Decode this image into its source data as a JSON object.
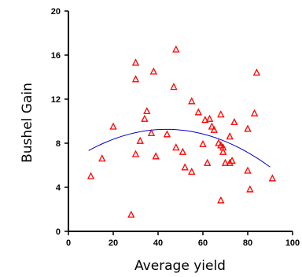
{
  "chart_data": {
    "type": "scatter",
    "xlabel": "Average yield",
    "ylabel": "Bushel Gain",
    "xlim": [
      0,
      100
    ],
    "ylim": [
      0,
      20
    ],
    "x_ticks": [
      0,
      20,
      40,
      60,
      80,
      100
    ],
    "y_ticks": [
      0,
      4,
      8,
      12,
      16,
      20
    ],
    "grid": false,
    "colors": {
      "marker": "#ff0000",
      "fit": "#0000cc",
      "axes": "#000000"
    },
    "marker_shape": "triangle",
    "points": [
      [
        10,
        5.0
      ],
      [
        15,
        6.6
      ],
      [
        20,
        9.5
      ],
      [
        28,
        1.5
      ],
      [
        30,
        15.3
      ],
      [
        30,
        13.8
      ],
      [
        30,
        7.0
      ],
      [
        32,
        8.2
      ],
      [
        34,
        10.2
      ],
      [
        35,
        10.9
      ],
      [
        37,
        8.9
      ],
      [
        38,
        14.5
      ],
      [
        39,
        6.8
      ],
      [
        44,
        8.8
      ],
      [
        47,
        13.1
      ],
      [
        48,
        16.5
      ],
      [
        48,
        7.6
      ],
      [
        51,
        7.2
      ],
      [
        52,
        5.8
      ],
      [
        55,
        11.8
      ],
      [
        55,
        5.4
      ],
      [
        58,
        10.8
      ],
      [
        60,
        7.9
      ],
      [
        61,
        10.1
      ],
      [
        62,
        6.2
      ],
      [
        63,
        10.2
      ],
      [
        64,
        9.5
      ],
      [
        65,
        9.2
      ],
      [
        67,
        8.0
      ],
      [
        68,
        10.6
      ],
      [
        68,
        7.8
      ],
      [
        69,
        7.6
      ],
      [
        69,
        7.2
      ],
      [
        70,
        6.2
      ],
      [
        72,
        6.2
      ],
      [
        72,
        8.6
      ],
      [
        73,
        6.4
      ],
      [
        74,
        9.9
      ],
      [
        68,
        2.8
      ],
      [
        80,
        9.3
      ],
      [
        80,
        5.5
      ],
      [
        81,
        3.8
      ],
      [
        83,
        10.7
      ],
      [
        84,
        14.4
      ],
      [
        91,
        4.8
      ]
    ],
    "fit_curve": {
      "type": "quadratic",
      "x_range": [
        9,
        90
      ],
      "coefficients": [
        6.2,
        0.14,
        -0.0016
      ]
    }
  }
}
